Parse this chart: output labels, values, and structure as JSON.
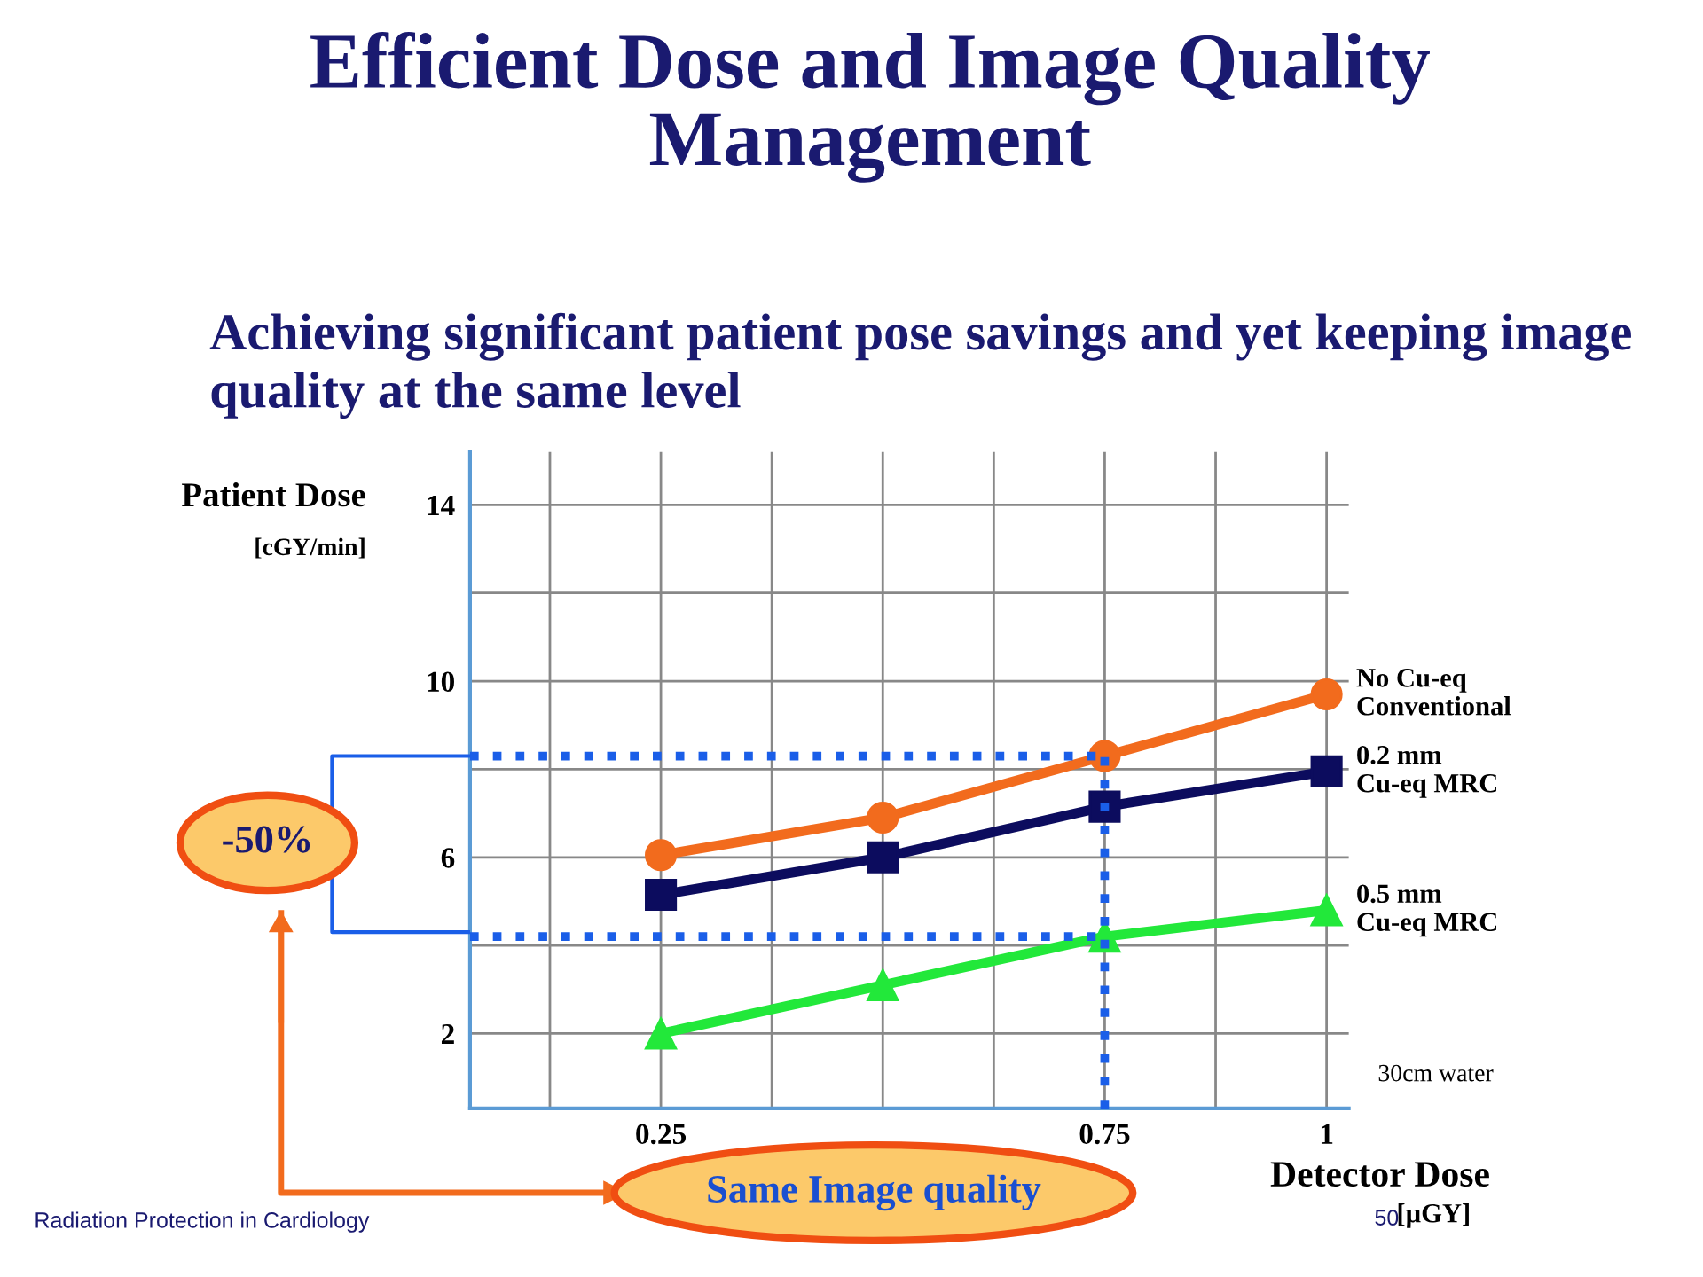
{
  "chart_data": {
    "type": "line",
    "title": "Efficient Dose and Image Quality Management",
    "subtitle": "Achieving significant patient pose savings and yet keeping image quality at the same level",
    "xlabel": "Detector Dose\n[µGY]",
    "ylabel": "Patient Dose\n[cGY/min]",
    "x": [
      0.25,
      0.5,
      0.75,
      1
    ],
    "series": [
      {
        "name": "No Cu-eq\nConventional",
        "color": "#f26b1d",
        "marker": "circle",
        "values": [
          6.05,
          6.9,
          8.3,
          9.7
        ]
      },
      {
        "name": "0.2 mm\nCu-eq MRC",
        "color": "#0c0c5e",
        "marker": "square",
        "values": [
          5.15,
          6.0,
          7.15,
          7.95
        ]
      },
      {
        "name": "0.5 mm\nCu-eq MRC",
        "color": "#22e83a",
        "marker": "triangle",
        "values": [
          2.0,
          3.1,
          4.2,
          4.8
        ]
      }
    ],
    "xlim": [
      0.035,
      1.025
    ],
    "ylim": [
      0.3,
      15.2
    ],
    "xticks": [
      {
        "value": 0.125,
        "label": null
      },
      0.25,
      {
        "value": 0.375,
        "label": null
      },
      {
        "value": 0.5,
        "label": null
      },
      {
        "value": 0.625,
        "label": null
      },
      0.75,
      {
        "value": 0.875,
        "label": null
      },
      1
    ],
    "yticks": [
      2,
      {
        "value": 4,
        "label": null
      },
      6,
      {
        "value": 8,
        "label": null
      },
      10,
      {
        "value": 12,
        "label": null
      },
      14
    ],
    "grid": true,
    "legend": false,
    "line_style": "solid",
    "ref_lines": [
      {
        "axis": "y",
        "value": 8.3,
        "color": "#1a5ee8",
        "line_style": "dotted"
      },
      {
        "axis": "y",
        "value": 4.2,
        "color": "#1a5ee8",
        "line_style": "dotted"
      },
      {
        "axis": "x",
        "value": 0.75,
        "color": "#1a5ee8",
        "line_style": "dotted"
      }
    ],
    "annotations": [
      "-50%",
      "Same Image quality",
      "30cm water",
      "Radiation Protection in Cardiology",
      "50"
    ]
  }
}
